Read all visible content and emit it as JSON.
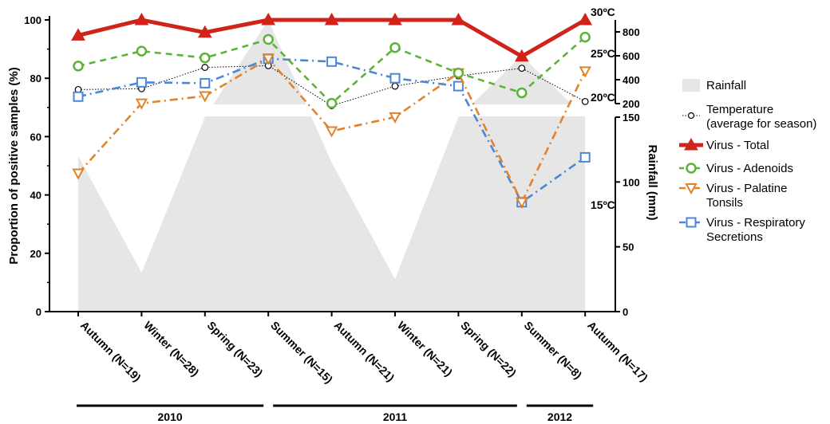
{
  "chart_data": {
    "type": "line",
    "categories": [
      "Autumn (N=19)",
      "Winter (N=28)",
      "Spring (N=23)",
      "Summer (N=15)",
      "Autumn (N=21)",
      "Winter (N=21)",
      "Spring (N=22)",
      "Summer (N=8)",
      "Autumn (N=17)"
    ],
    "years": [
      {
        "label": "2010",
        "from": 0,
        "to": 3
      },
      {
        "label": "2011",
        "from": 3,
        "to": 7
      },
      {
        "label": "2012",
        "from": 7,
        "to": 8
      }
    ],
    "ylabel": "Proportion of positive samples (%)",
    "ylim": [
      0,
      100
    ],
    "yticks": [
      "0",
      "20",
      "40",
      "60",
      "80",
      "100"
    ],
    "rainfall_axis": {
      "label": "Rainfall (mm)",
      "lower_range": [
        0,
        150
      ],
      "lower_ticks": [
        "0",
        "50",
        "100",
        "150"
      ],
      "upper_range": [
        200,
        900
      ],
      "upper_ticks": [
        "200",
        "400",
        "600",
        "800"
      ],
      "break_between": [
        150,
        200
      ]
    },
    "temperature_labels": [
      {
        "text": "30ºC",
        "value": 30
      },
      {
        "text": "25ºC",
        "value": 25
      },
      {
        "text": "20ºC",
        "value": 20
      },
      {
        "text": "15ºC",
        "value": 15
      }
    ],
    "rainfall": {
      "name": "Rainfall",
      "values": [
        120,
        30,
        150,
        900,
        115,
        25,
        150,
        600,
        150
      ],
      "color": "#e6e6e6"
    },
    "temperature": {
      "name": "Temperature\n(average for season)",
      "values": [
        20.9,
        21.0,
        23.5,
        23.7,
        19.0,
        21.3,
        22.5,
        23.4,
        19.5
      ],
      "color": "#000000"
    },
    "series": [
      {
        "name": "Virus - Total",
        "values": [
          94.7,
          100,
          95.7,
          100,
          100,
          100,
          100,
          87.5,
          100
        ],
        "color": "#d0231a",
        "marker": "triangle",
        "dash": "none"
      },
      {
        "name": "Virus - Adenoids",
        "values": [
          84.2,
          89.3,
          87.0,
          93.3,
          71.4,
          90.5,
          81.8,
          75.0,
          94.1
        ],
        "color": "#5cb338",
        "marker": "circle",
        "dash": "8,6"
      },
      {
        "name": "Virus - Palatine\nTonsils",
        "values": [
          47.4,
          71.4,
          73.9,
          86.7,
          61.9,
          66.7,
          81.8,
          37.5,
          82.4
        ],
        "color": "#e2822a",
        "marker": "triangle-down",
        "dash": "10,5,2,5"
      },
      {
        "name": "Virus - Respiratory\nSecretions",
        "values": [
          73.7,
          78.6,
          78.3,
          86.7,
          85.7,
          80.0,
          77.3,
          37.5,
          52.9
        ],
        "color": "#4a86d9",
        "marker": "square",
        "dash": "10,5,2,5"
      }
    ]
  }
}
